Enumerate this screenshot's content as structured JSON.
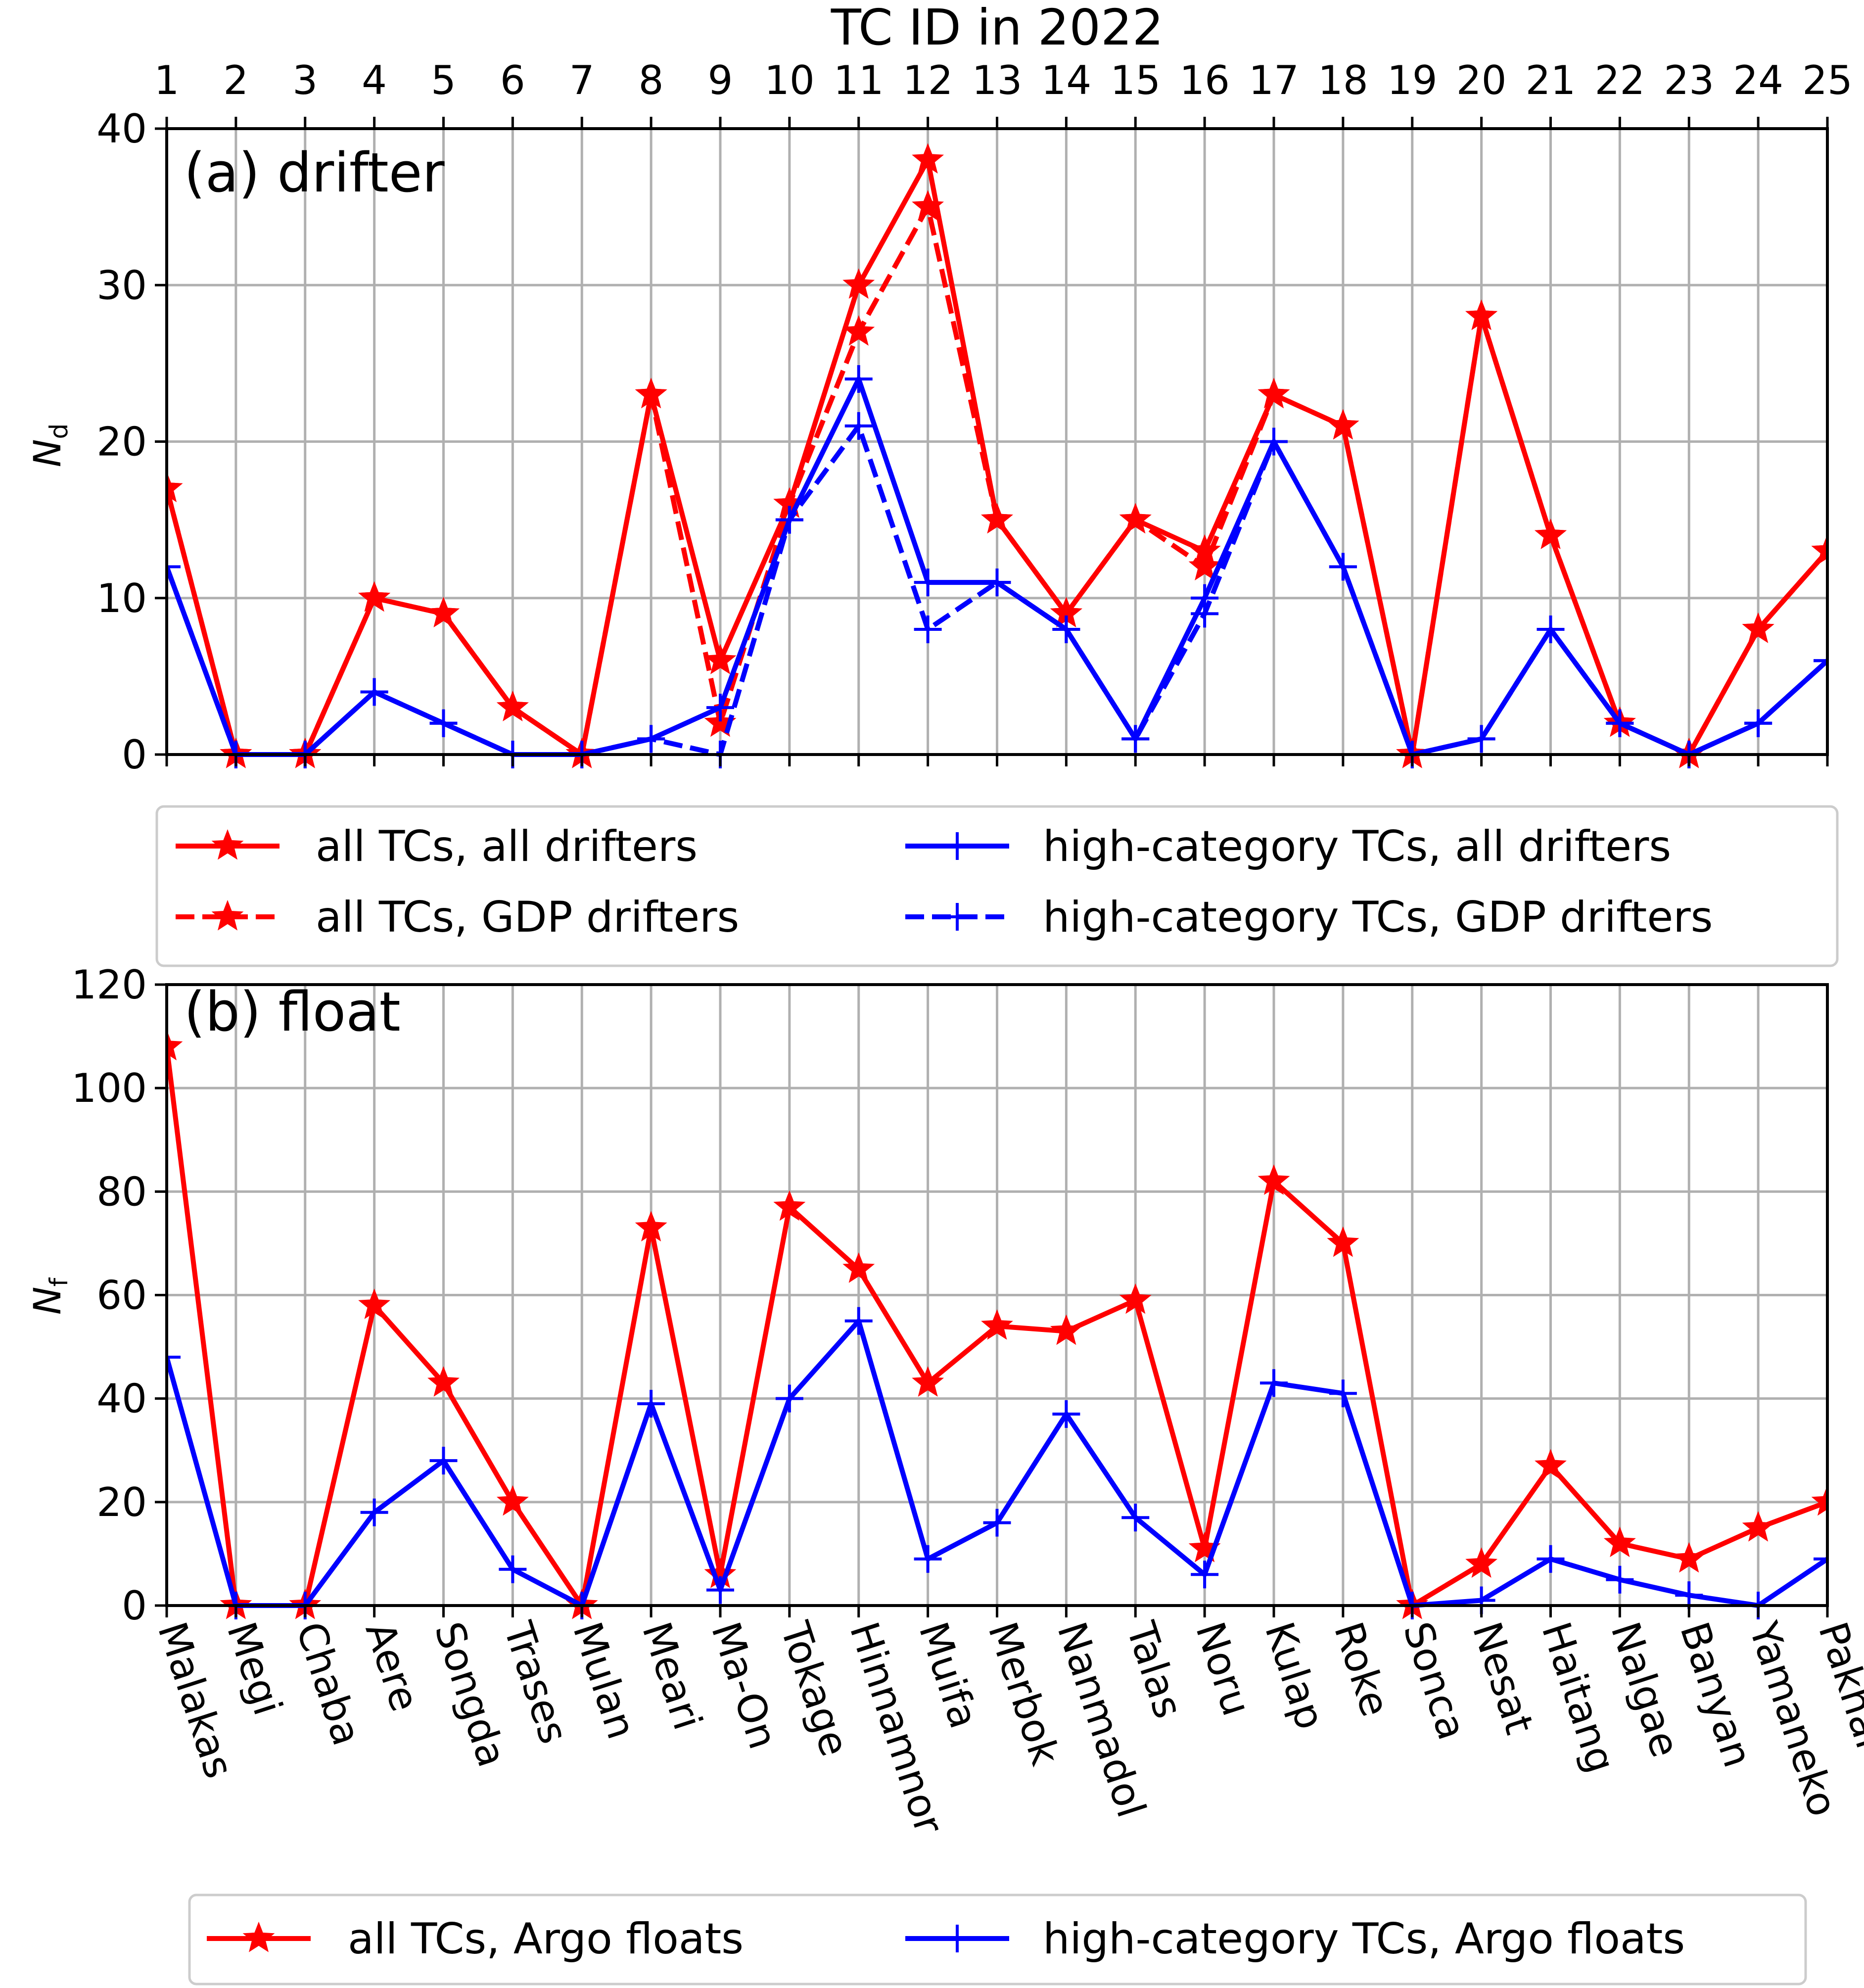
{
  "top_axis_title": "TC ID in 2022",
  "tc_ids": [
    "1",
    "2",
    "3",
    "4",
    "5",
    "6",
    "7",
    "8",
    "9",
    "10",
    "11",
    "12",
    "13",
    "14",
    "15",
    "16",
    "17",
    "18",
    "19",
    "20",
    "21",
    "22",
    "23",
    "24",
    "25"
  ],
  "tc_names": [
    "Malakas",
    "Megi",
    "Chaba",
    "Aere",
    "Songda",
    "Trases",
    "Mulan",
    "Meari",
    "Ma-On",
    "Tokage",
    "Hinnamnor",
    "Muifa",
    "Merbok",
    "Nanmadol",
    "Talas",
    "Noru",
    "Kulap",
    "Roke",
    "Sonca",
    "Nesat",
    "Haitang",
    "Nalgae",
    "Banyan",
    "Yamaneko",
    "Pakhar"
  ],
  "colors": {
    "red": "#ff0000",
    "blue": "#0000ff",
    "grid": "#b0b0b0",
    "legend_border": "#cccccc"
  },
  "chart_data": [
    {
      "type": "line",
      "panel_label": "(a) drifter",
      "ylabel": {
        "main": "N",
        "sub": "d"
      },
      "ylim": [
        0,
        40
      ],
      "yticks": [
        "0",
        "10",
        "20",
        "30",
        "40"
      ],
      "series": [
        {
          "name": "all TCs, all drifters",
          "color": "#ff0000",
          "dashed": false,
          "marker": "star",
          "values": [
            17,
            0,
            0,
            10,
            9,
            3,
            0,
            23,
            6,
            16,
            30,
            38,
            15,
            9,
            15,
            13,
            23,
            21,
            0,
            28,
            14,
            2,
            0,
            8,
            13
          ]
        },
        {
          "name": "all TCs, GDP drifters",
          "color": "#ff0000",
          "dashed": true,
          "marker": "star",
          "values": [
            17,
            0,
            0,
            10,
            9,
            3,
            0,
            23,
            2,
            16,
            27,
            35,
            15,
            9,
            15,
            12,
            23,
            21,
            0,
            28,
            14,
            2,
            0,
            8,
            13
          ]
        },
        {
          "name": "high-category TCs, all drifters",
          "color": "#0000ff",
          "dashed": false,
          "marker": "plus",
          "values": [
            12,
            0,
            0,
            4,
            2,
            0,
            0,
            1,
            3,
            15,
            24,
            11,
            11,
            8,
            1,
            10,
            20,
            12,
            0,
            1,
            8,
            2,
            0,
            2,
            6
          ]
        },
        {
          "name": "high-category TCs, GDP drifters",
          "color": "#0000ff",
          "dashed": true,
          "marker": "plus",
          "values": [
            12,
            0,
            0,
            4,
            2,
            0,
            0,
            1,
            0,
            15,
            21,
            8,
            11,
            8,
            1,
            9,
            20,
            12,
            0,
            1,
            8,
            2,
            0,
            2,
            6
          ]
        }
      ],
      "legend": {
        "col1": [
          "all TCs, all drifters",
          "all TCs, GDP drifters"
        ],
        "col2": [
          "high-category TCs, all drifters",
          "high-category TCs, GDP drifters"
        ]
      }
    },
    {
      "type": "line",
      "panel_label": "(b) float",
      "ylabel": {
        "main": "N",
        "sub": "f"
      },
      "ylim": [
        0,
        120
      ],
      "yticks": [
        "0",
        "20",
        "40",
        "60",
        "80",
        "100",
        "120"
      ],
      "series": [
        {
          "name": "all TCs, Argo floats",
          "color": "#ff0000",
          "dashed": false,
          "marker": "star",
          "values": [
            108,
            0,
            0,
            58,
            43,
            20,
            0,
            73,
            6,
            77,
            65,
            43,
            54,
            53,
            59,
            11,
            82,
            70,
            0,
            8,
            27,
            12,
            9,
            15,
            20
          ]
        },
        {
          "name": "high-category TCs, Argo floats",
          "color": "#0000ff",
          "dashed": false,
          "marker": "plus",
          "values": [
            48,
            0,
            0,
            18,
            28,
            7,
            0,
            39,
            3,
            40,
            55,
            9,
            16,
            37,
            17,
            6,
            43,
            41,
            0,
            1,
            9,
            5,
            2,
            0,
            9
          ]
        }
      ],
      "legend": {
        "col1": [
          "all TCs, Argo floats"
        ],
        "col2": [
          "high-category TCs, Argo floats"
        ]
      }
    }
  ]
}
